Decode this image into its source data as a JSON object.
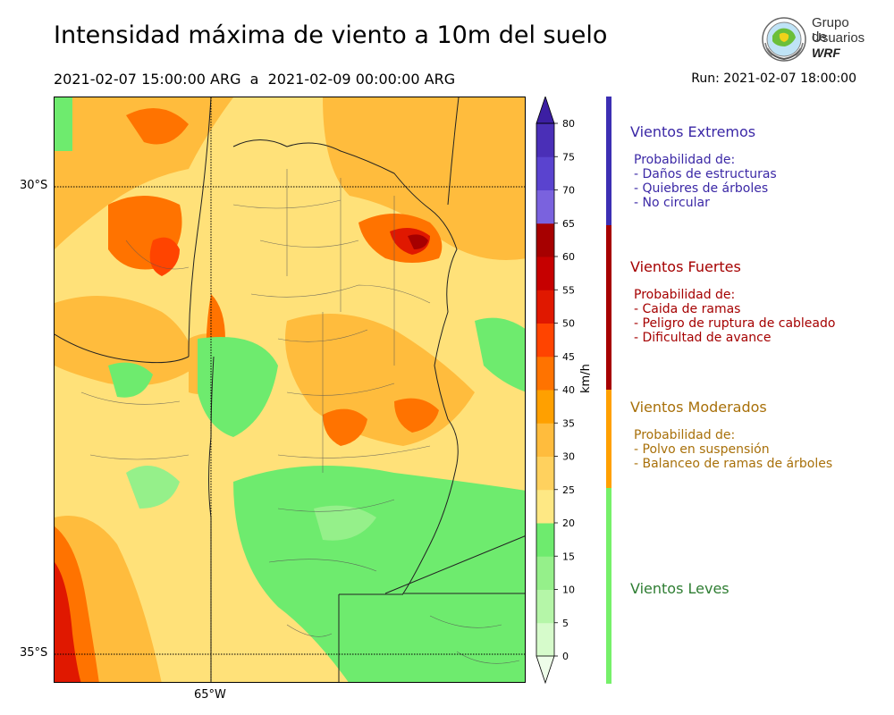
{
  "header": {
    "title": "Intensidad máxima de viento a 10m del suelo",
    "period": "2021-02-07 15:00:00 ARG  a  2021-02-09 00:00:00 ARG",
    "run": "Run: 2021-02-07 18:00:00"
  },
  "logo": {
    "line1": "Grupo de",
    "line2": "Usuarios",
    "line3": "WRF",
    "icon": "globe-seal-icon"
  },
  "map": {
    "lat_labels": [
      "30°S",
      "35°S"
    ],
    "lon_labels": [
      "65°W"
    ]
  },
  "colorbar": {
    "units": "km/h",
    "ticks": [
      "0",
      "5",
      "10",
      "15",
      "20",
      "25",
      "30",
      "35",
      "40",
      "45",
      "50",
      "55",
      "60",
      "65",
      "70",
      "75",
      "80"
    ],
    "colors": [
      "#eefde9",
      "#d6fbcb",
      "#b5f6a8",
      "#95f08a",
      "#6eeb6e",
      "#fee884",
      "#ffd15e",
      "#ffbc3d",
      "#ffa000",
      "#ff7300",
      "#ff4400",
      "#e01800",
      "#c60000",
      "#a60000",
      "#7a62de",
      "#5a43cf",
      "#4a2fb7",
      "#3c1fa3"
    ]
  },
  "categories": [
    {
      "title": "Vientos Extremos",
      "color": "#3b28a6",
      "bar_color": "#3c2fb3",
      "desc_title": "Probabilidad de:",
      "items": [
        "- Daños de estructuras",
        "- Quiebres de árboles",
        "- No circular"
      ]
    },
    {
      "title": "Vientos Fuertes",
      "color": "#a50000",
      "bar_color": "#a60000",
      "desc_title": "Probabilidad de:",
      "items": [
        "- Caida de ramas",
        "- Peligro de ruptura de cableado",
        "- Dificultad de avance"
      ]
    },
    {
      "title": "Vientos Moderados",
      "color": "#a8700a",
      "bar_color": "#ffa000",
      "desc_title": "Probabilidad de:",
      "items": [
        "- Polvo en suspensión",
        "- Balanceo de ramas de árboles"
      ]
    },
    {
      "title": "Vientos Leves",
      "color": "#2e7d32",
      "bar_color": "#76f06a"
    }
  ]
}
